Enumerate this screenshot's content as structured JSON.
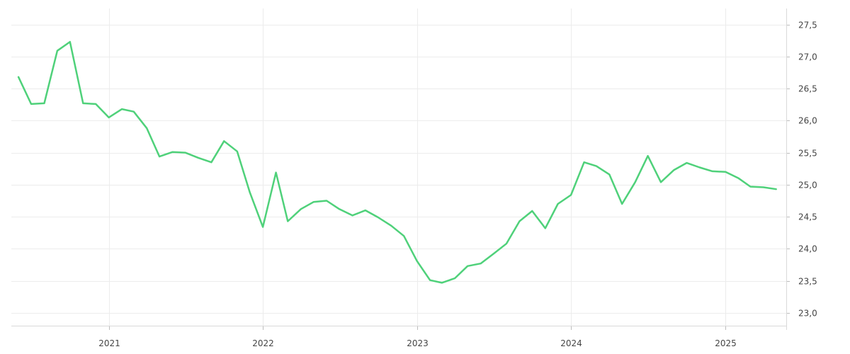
{
  "chart_data": {
    "type": "line",
    "title": "",
    "xlabel": "",
    "ylabel": "",
    "x_range": [
      "2020-05-15",
      "2025-05-25"
    ],
    "y_range": [
      22.8,
      27.75
    ],
    "y_axis_position": "right",
    "grid": true,
    "legend": "none",
    "x_ticks": [
      {
        "value": "2021-01-01",
        "label": "2021"
      },
      {
        "value": "2022-01-01",
        "label": "2022"
      },
      {
        "value": "2023-01-01",
        "label": "2023"
      },
      {
        "value": "2024-01-01",
        "label": "2024"
      },
      {
        "value": "2025-01-01",
        "label": "2025"
      }
    ],
    "y_ticks": [
      {
        "value": 23.0,
        "label": "23,0"
      },
      {
        "value": 23.5,
        "label": "23,5"
      },
      {
        "value": 24.0,
        "label": "24,0"
      },
      {
        "value": 24.5,
        "label": "24,5"
      },
      {
        "value": 25.0,
        "label": "25,0"
      },
      {
        "value": 25.5,
        "label": "25,5"
      },
      {
        "value": 26.0,
        "label": "26,0"
      },
      {
        "value": 26.5,
        "label": "26,5"
      },
      {
        "value": 27.0,
        "label": "27,0"
      },
      {
        "value": 27.5,
        "label": "27,5"
      }
    ],
    "series": [
      {
        "color": "#4fd17a",
        "points": [
          [
            "2020-06-01",
            26.68
          ],
          [
            "2020-07-01",
            26.26
          ],
          [
            "2020-08-01",
            26.27
          ],
          [
            "2020-09-01",
            27.09
          ],
          [
            "2020-10-01",
            27.23
          ],
          [
            "2020-11-01",
            26.27
          ],
          [
            "2020-12-01",
            26.26
          ],
          [
            "2021-01-01",
            26.05
          ],
          [
            "2021-02-01",
            26.18
          ],
          [
            "2021-03-01",
            26.14
          ],
          [
            "2021-04-01",
            25.88
          ],
          [
            "2021-05-01",
            25.44
          ],
          [
            "2021-06-01",
            25.51
          ],
          [
            "2021-07-01",
            25.5
          ],
          [
            "2021-08-01",
            25.42
          ],
          [
            "2021-09-01",
            25.35
          ],
          [
            "2021-10-01",
            25.68
          ],
          [
            "2021-11-01",
            25.52
          ],
          [
            "2021-12-01",
            24.88
          ],
          [
            "2022-01-01",
            24.34
          ],
          [
            "2022-02-01",
            25.19
          ],
          [
            "2022-03-01",
            24.43
          ],
          [
            "2022-04-01",
            24.62
          ],
          [
            "2022-05-01",
            24.73
          ],
          [
            "2022-06-01",
            24.75
          ],
          [
            "2022-07-01",
            24.62
          ],
          [
            "2022-08-01",
            24.52
          ],
          [
            "2022-09-01",
            24.6
          ],
          [
            "2022-10-01",
            24.49
          ],
          [
            "2022-11-01",
            24.36
          ],
          [
            "2022-12-01",
            24.2
          ],
          [
            "2023-01-01",
            23.81
          ],
          [
            "2023-02-01",
            23.51
          ],
          [
            "2023-03-01",
            23.47
          ],
          [
            "2023-04-01",
            23.54
          ],
          [
            "2023-05-01",
            23.73
          ],
          [
            "2023-06-01",
            23.77
          ],
          [
            "2023-07-01",
            23.92
          ],
          [
            "2023-08-01",
            24.08
          ],
          [
            "2023-09-01",
            24.43
          ],
          [
            "2023-10-01",
            24.59
          ],
          [
            "2023-11-01",
            24.32
          ],
          [
            "2023-12-01",
            24.7
          ],
          [
            "2024-01-01",
            24.84
          ],
          [
            "2024-02-01",
            25.35
          ],
          [
            "2024-03-01",
            25.29
          ],
          [
            "2024-04-01",
            25.16
          ],
          [
            "2024-05-01",
            24.7
          ],
          [
            "2024-06-01",
            25.04
          ],
          [
            "2024-07-01",
            25.45
          ],
          [
            "2024-08-01",
            25.04
          ],
          [
            "2024-09-01",
            25.23
          ],
          [
            "2024-10-01",
            25.34
          ],
          [
            "2024-11-01",
            25.27
          ],
          [
            "2024-12-01",
            25.21
          ],
          [
            "2025-01-01",
            25.2
          ],
          [
            "2025-02-01",
            25.1
          ],
          [
            "2025-03-01",
            24.97
          ],
          [
            "2025-04-01",
            24.96
          ],
          [
            "2025-05-01",
            24.93
          ]
        ]
      }
    ]
  }
}
